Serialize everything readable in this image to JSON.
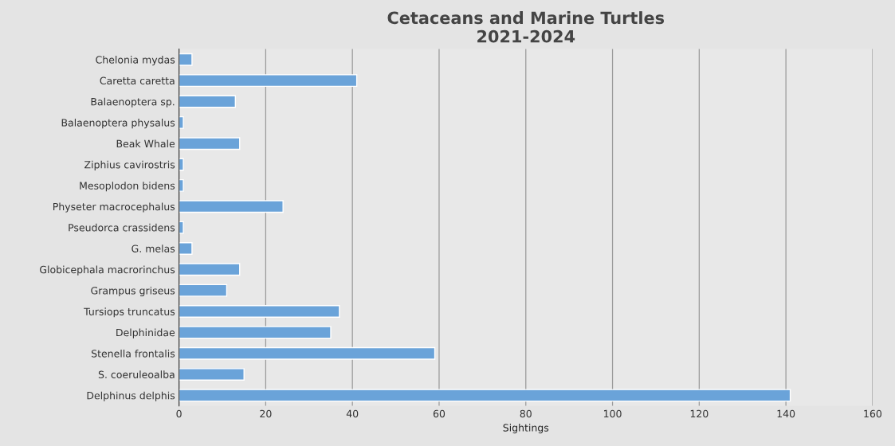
{
  "chart_data": {
    "type": "bar",
    "orientation": "horizontal",
    "title": "Cetaceans and Marine Turtles\n2021-2024",
    "xlabel": "Sightings",
    "categories": [
      "Chelonia mydas",
      "Caretta caretta",
      "Balaenoptera sp.",
      "Balaenoptera physalus",
      "Beak Whale",
      "Ziphius cavirostris",
      "Mesoplodon bidens",
      "Physeter macrocephalus",
      "Pseudorca crassidens",
      "G. melas",
      "Globicephala macrorinchus",
      "Grampus griseus",
      "Tursiops truncatus",
      "Delphinidae",
      "Stenella frontalis",
      "S. coeruleoalba",
      "Delphinus delphis"
    ],
    "values": [
      3,
      41,
      13,
      1,
      14,
      1,
      1,
      24,
      1,
      3,
      14,
      11,
      37,
      35,
      59,
      15,
      141
    ],
    "color": "#6aa3d9",
    "xlim": [
      0,
      160
    ],
    "xticks": [
      0,
      20,
      40,
      60,
      80,
      100,
      120,
      140,
      160
    ],
    "grid": "x",
    "legend": false
  }
}
